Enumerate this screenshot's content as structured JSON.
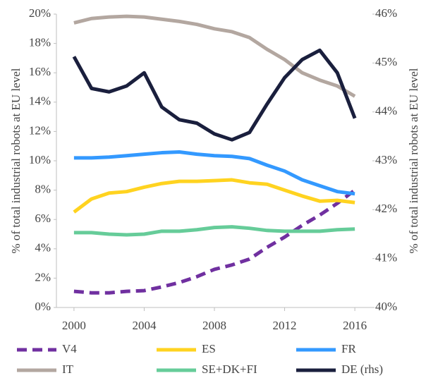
{
  "chart_data": {
    "type": "line",
    "ylabel": "% of total industrial robots at EU level",
    "y2label": "% of total industrial robots at EU level",
    "x": [
      2000,
      2001,
      2002,
      2003,
      2004,
      2005,
      2006,
      2007,
      2008,
      2009,
      2010,
      2011,
      2012,
      2013,
      2014,
      2015,
      2016
    ],
    "xlim": [
      1999,
      2017
    ],
    "xticks": [
      2000,
      2004,
      2008,
      2012,
      2016
    ],
    "ylim": [
      0,
      20
    ],
    "yticks": [
      {
        "value": 0,
        "label": "0%"
      },
      {
        "value": 2,
        "label": "2%"
      },
      {
        "value": 4,
        "label": "4%"
      },
      {
        "value": 6,
        "label": "6%"
      },
      {
        "value": 8,
        "label": "8%"
      },
      {
        "value": 10,
        "label": "10%"
      },
      {
        "value": 12,
        "label": "12%"
      },
      {
        "value": 14,
        "label": "14%"
      },
      {
        "value": 16,
        "label": "16%"
      },
      {
        "value": 18,
        "label": "18%"
      },
      {
        "value": 20,
        "label": "20%"
      }
    ],
    "y2lim": [
      40,
      46
    ],
    "y2ticks": [
      {
        "value": 40,
        "label": "40%"
      },
      {
        "value": 41,
        "label": "41%"
      },
      {
        "value": 42,
        "label": "42%"
      },
      {
        "value": 43,
        "label": "43%"
      },
      {
        "value": 44,
        "label": "44%"
      },
      {
        "value": 45,
        "label": "45%"
      },
      {
        "value": 46,
        "label": "46%"
      }
    ],
    "grid": false,
    "legend": "bottom",
    "series": [
      {
        "name": "V4",
        "color": "#7030a0",
        "dashed": true,
        "values": [
          1.1,
          1.0,
          1.0,
          1.1,
          1.15,
          1.4,
          1.7,
          2.1,
          2.6,
          2.9,
          3.3,
          4.1,
          4.8,
          5.6,
          6.3,
          7.1,
          8.0
        ]
      },
      {
        "name": "ES",
        "color": "#ffd320",
        "values": [
          6.5,
          7.4,
          7.8,
          7.9,
          8.2,
          8.45,
          8.6,
          8.6,
          8.65,
          8.7,
          8.5,
          8.4,
          8.0,
          7.6,
          7.25,
          7.3,
          7.15
        ]
      },
      {
        "name": "FR",
        "color": "#3399ff",
        "values": [
          10.2,
          10.2,
          10.25,
          10.35,
          10.45,
          10.55,
          10.6,
          10.45,
          10.35,
          10.3,
          10.15,
          9.7,
          9.3,
          8.7,
          8.3,
          7.9,
          7.75
        ]
      },
      {
        "name": "IT",
        "color": "#b3a7a0",
        "values": [
          19.4,
          19.7,
          19.8,
          19.85,
          19.8,
          19.65,
          19.5,
          19.3,
          19.0,
          18.8,
          18.4,
          17.6,
          16.9,
          16.0,
          15.5,
          15.1,
          14.4
        ]
      },
      {
        "name": "SE+DK+FI",
        "color": "#66cc99",
        "values": [
          5.1,
          5.1,
          5.0,
          4.95,
          5.0,
          5.2,
          5.2,
          5.3,
          5.45,
          5.5,
          5.4,
          5.25,
          5.2,
          5.2,
          5.2,
          5.3,
          5.35
        ]
      },
      {
        "name": "DE (rhs)",
        "color": "#1a1f3d",
        "axis": "y2",
        "values": [
          45.13,
          44.48,
          44.41,
          44.53,
          44.8,
          44.1,
          43.84,
          43.77,
          43.55,
          43.43,
          43.58,
          44.16,
          44.7,
          45.07,
          45.26,
          44.8,
          43.87
        ]
      }
    ]
  }
}
